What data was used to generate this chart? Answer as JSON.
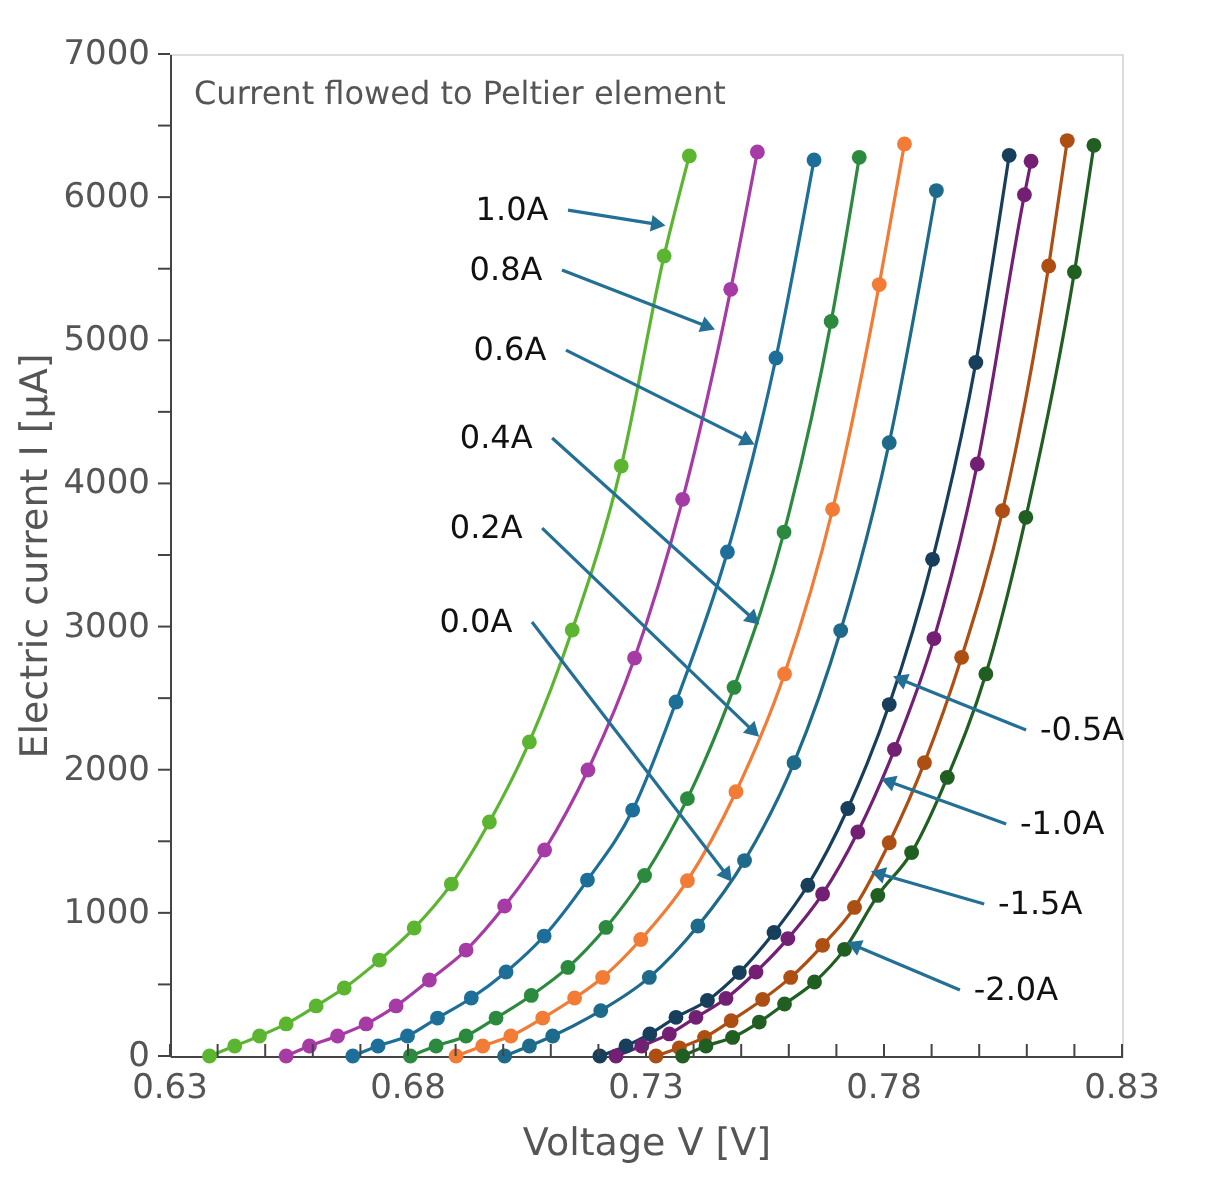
{
  "chart_data": {
    "type": "line",
    "title": "Current flowed to Peltier element",
    "xlabel": "Voltage V [V]",
    "ylabel": "Electric current I [μA]",
    "xlim": [
      0.63,
      0.83
    ],
    "ylim": [
      0,
      7000
    ],
    "xticks": [
      0.63,
      {
        "value": 0.64,
        "label": null
      },
      {
        "value": 0.65,
        "label": null
      },
      {
        "value": 0.66,
        "label": null
      },
      {
        "value": 0.67,
        "label": null
      },
      0.68,
      {
        "value": 0.69,
        "label": null
      },
      {
        "value": 0.7,
        "label": null
      },
      {
        "value": 0.71,
        "label": null
      },
      {
        "value": 0.72,
        "label": null
      },
      0.73,
      {
        "value": 0.74,
        "label": null
      },
      {
        "value": 0.75,
        "label": null
      },
      {
        "value": 0.76,
        "label": null
      },
      {
        "value": 0.77,
        "label": null
      },
      0.78,
      {
        "value": 0.79,
        "label": null
      },
      {
        "value": 0.8,
        "label": null
      },
      {
        "value": 0.81,
        "label": null
      },
      {
        "value": 0.82,
        "label": null
      },
      0.83
    ],
    "yticks": [
      0,
      {
        "value": 500,
        "label": null
      },
      1000,
      {
        "value": 1500,
        "label": null
      },
      2000,
      {
        "value": 2500,
        "label": null
      },
      3000,
      {
        "value": 3500,
        "label": null
      },
      4000,
      {
        "value": 4500,
        "label": null
      },
      5000,
      {
        "value": 5500,
        "label": null
      },
      6000,
      {
        "value": 6500,
        "label": null
      },
      7000
    ],
    "grid": false,
    "legend": false,
    "marker": "circle",
    "line_style": "solid",
    "series": [
      {
        "color": "#5cb531",
        "x": [
          0.6383,
          0.6436,
          0.6488,
          0.6544,
          0.6607,
          0.6666,
          0.674,
          0.6813,
          0.6891,
          0.6971,
          0.7055,
          0.7145,
          0.7248,
          0.7338,
          0.7391
        ],
        "values": [
          0,
          70,
          140,
          224,
          350,
          475,
          670,
          894,
          1201,
          1635,
          2194,
          2976,
          4121,
          5589,
          6288
        ]
      },
      {
        "color": "#a63ba6",
        "x": [
          0.6544,
          0.6593,
          0.6652,
          0.6712,
          0.6775,
          0.6845,
          0.6922,
          0.7003,
          0.7087,
          0.7178,
          0.7276,
          0.7377,
          0.7478,
          0.7534
        ],
        "values": [
          0,
          70,
          140,
          224,
          350,
          531,
          740,
          1048,
          1439,
          1998,
          2780,
          3889,
          5356,
          6316
        ]
      },
      {
        "color": "#1d6f99",
        "x": [
          0.6684,
          0.6737,
          0.6799,
          0.6862,
          0.6933,
          0.7006,
          0.7086,
          0.7177,
          0.7272,
          0.7363,
          0.7471,
          0.7573,
          0.7653
        ],
        "values": [
          0,
          70,
          140,
          265,
          405,
          587,
          838,
          1229,
          1718,
          2473,
          3521,
          4876,
          6260
        ]
      },
      {
        "color": "#2b8a3e",
        "x": [
          0.6805,
          0.6859,
          0.6922,
          0.6985,
          0.7059,
          0.7136,
          0.7216,
          0.7297,
          0.7387,
          0.7485,
          0.759,
          0.7689,
          0.7748
        ],
        "values": [
          0,
          70,
          140,
          265,
          423,
          619,
          898,
          1261,
          1798,
          2575,
          3660,
          5132,
          6278
        ]
      },
      {
        "color": "#f27c35",
        "x": [
          0.6901,
          0.6957,
          0.7016,
          0.7083,
          0.715,
          0.7209,
          0.7289,
          0.7387,
          0.7489,
          0.7591,
          0.7692,
          0.779,
          0.7843
        ],
        "values": [
          0,
          70,
          140,
          265,
          405,
          549,
          814,
          1225,
          1846,
          2669,
          3819,
          5389,
          6372
        ]
      },
      {
        "color": "#1d6a8a",
        "x": [
          0.7003,
          0.7055,
          0.7104,
          0.7205,
          0.7307,
          0.7409,
          0.7507,
          0.7611,
          0.7709,
          0.7811,
          0.791
        ],
        "values": [
          0,
          70,
          140,
          317,
          549,
          908,
          1365,
          2049,
          2972,
          4285,
          6046
        ]
      },
      {
        "color": "#173f5c",
        "x": [
          0.7203,
          0.7258,
          0.7308,
          0.7363,
          0.7429,
          0.7496,
          0.7569,
          0.764,
          0.7724,
          0.7811,
          0.7902,
          0.7993,
          0.8063
        ],
        "values": [
          0,
          70,
          154,
          270,
          388,
          583,
          863,
          1193,
          1729,
          2455,
          3470,
          4845,
          6292
        ]
      },
      {
        "color": "#731f73",
        "x": [
          0.7237,
          0.7291,
          0.7349,
          0.7405,
          0.7468,
          0.7531,
          0.7598,
          0.7671,
          0.7745,
          0.7822,
          0.7905,
          0.7996,
          0.8095,
          0.8109
        ],
        "values": [
          0,
          70,
          154,
          270,
          402,
          587,
          820,
          1132,
          1565,
          2142,
          2916,
          4136,
          6017,
          6251
        ]
      },
      {
        "color": "#ad4e12",
        "x": [
          0.7321,
          0.737,
          0.7423,
          0.7479,
          0.7545,
          0.7604,
          0.7671,
          0.7738,
          0.7811,
          0.7885,
          0.7963,
          0.8049,
          0.8146,
          0.8185
        ],
        "values": [
          0,
          57,
          130,
          247,
          395,
          549,
          773,
          1038,
          1490,
          2049,
          2785,
          3809,
          5519,
          6395
        ]
      },
      {
        "color": "#215e21",
        "x": [
          0.7377,
          0.7426,
          0.7482,
          0.7538,
          0.7591,
          0.7654,
          0.7717,
          0.7787,
          0.7858,
          0.7933,
          0.8014,
          0.8098,
          0.82,
          0.8241
        ],
        "values": [
          0,
          70,
          130,
          237,
          363,
          517,
          745,
          1122,
          1421,
          1946,
          2669,
          3763,
          5477,
          6362
        ]
      }
    ],
    "annotations": [
      {
        "text": "1.0A",
        "x": 0.7321,
        "y": 5812
      },
      {
        "text": "0.8A",
        "x": 0.7426,
        "y": 5100
      },
      {
        "text": "0.6A",
        "x": 0.751,
        "y": 4303
      },
      {
        "text": "0.4A",
        "x": 0.7523,
        "y": 3060
      },
      {
        "text": "0.2A",
        "x": 0.7523,
        "y": 2277
      },
      {
        "text": "0.0A",
        "x": 0.7468,
        "y": 1271
      },
      {
        "text": "-0.5A",
        "x": 0.7838,
        "y": 2627
      },
      {
        "text": "-1.0A",
        "x": 0.7813,
        "y": 1914
      },
      {
        "text": "-1.5A",
        "x": 0.7792,
        "y": 1271
      },
      {
        "text": "-2.0A",
        "x": 0.7741,
        "y": 768
      }
    ]
  }
}
